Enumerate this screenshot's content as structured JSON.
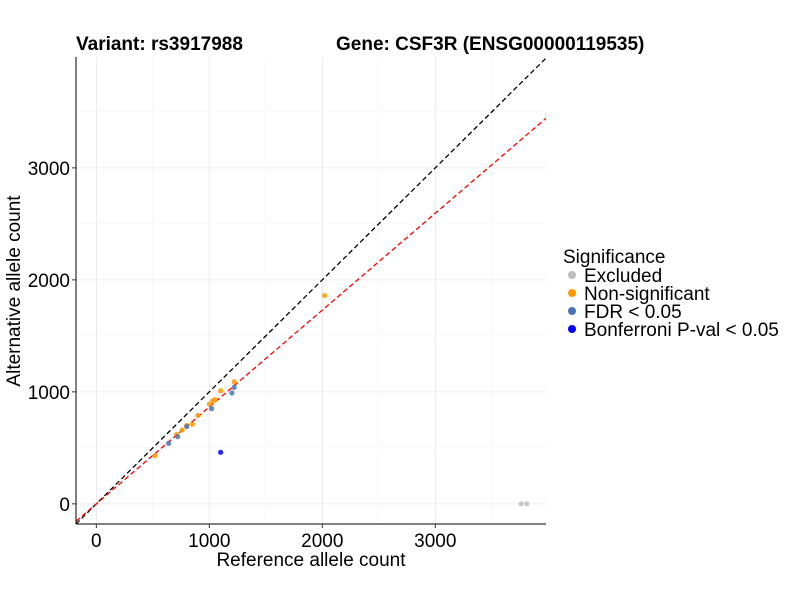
{
  "chart_data": {
    "type": "scatter",
    "title_left": "Variant: rs3917988",
    "title_right": "Gene: CSF3R (ENSG00000119535)",
    "xlabel": "Reference allele count",
    "ylabel": "Alternative allele count",
    "xlim": [
      -180,
      3980
    ],
    "ylim": [
      -180,
      3990
    ],
    "xticks": [
      0,
      1000,
      2000,
      3000
    ],
    "yticks": [
      0,
      1000,
      2000,
      3000
    ],
    "grid": true,
    "reference_lines": [
      {
        "name": "identity",
        "slope": 1.0,
        "intercept": 0,
        "color": "#000000",
        "style": "dashed"
      },
      {
        "name": "expected-ratio",
        "slope": 0.865,
        "intercept": 0,
        "color": "#ff0000",
        "style": "dashed"
      }
    ],
    "legend": {
      "title": "Significance",
      "position": "right",
      "entries": [
        {
          "label": "Excluded",
          "color": "#bebebe"
        },
        {
          "label": "Non-significant",
          "color": "#ff9900"
        },
        {
          "label": "FDR < 0.05",
          "color": "#4876b4"
        },
        {
          "label": "Bonferroni P-val < 0.05",
          "color": "#0000ff"
        }
      ]
    },
    "series": [
      {
        "name": "Excluded",
        "color": "#bebebe",
        "points": [
          [
            3760,
            0
          ],
          [
            3810,
            0
          ]
        ]
      },
      {
        "name": "Non-significant",
        "color": "#ff9900",
        "points": [
          [
            520,
            430
          ],
          [
            710,
            620
          ],
          [
            760,
            660
          ],
          [
            800,
            700
          ],
          [
            850,
            710
          ],
          [
            900,
            790
          ],
          [
            1000,
            890
          ],
          [
            1030,
            920
          ],
          [
            1050,
            930
          ],
          [
            1100,
            1010
          ],
          [
            1220,
            1090
          ],
          [
            2020,
            1860
          ]
        ]
      },
      {
        "name": "FDR < 0.05",
        "color": "#4876b4",
        "points": [
          [
            640,
            540
          ],
          [
            720,
            600
          ],
          [
            800,
            690
          ],
          [
            1020,
            850
          ],
          [
            1200,
            990
          ],
          [
            1220,
            1040
          ]
        ]
      },
      {
        "name": "Bonferroni P-val < 0.05",
        "color": "#0000ff",
        "points": [
          [
            1100,
            460
          ]
        ]
      }
    ]
  }
}
